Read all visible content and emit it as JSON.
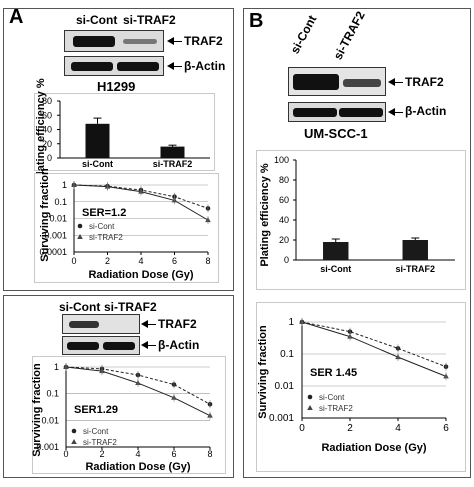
{
  "panel_a": {
    "letter": "A",
    "blot_top": {
      "lane_labels": [
        "si-Cont",
        "si-TRAF2"
      ],
      "protein_labels": [
        "TRAF2",
        "β-Actin"
      ],
      "cell_line": "H1299"
    },
    "blot_bottom": {
      "lane_labels": [
        "si-Cont",
        "si-TRAF2"
      ],
      "protein_labels": [
        "TRAF2",
        "β-Actin"
      ]
    }
  },
  "panel_b": {
    "letter": "B",
    "blot": {
      "lane_labels": [
        "si-Cont",
        "si-TRAF2"
      ],
      "protein_labels": [
        "TRAF2",
        "β-Actin"
      ],
      "cell_line": "UM-SCC-1"
    }
  },
  "chart_data": [
    {
      "id": "a_plating",
      "type": "bar",
      "categories": [
        "si-Cont",
        "si-TRAF2"
      ],
      "values": [
        48,
        16
      ],
      "errors": [
        8,
        2
      ],
      "ylabel": "Plating efficiency %",
      "ylim": [
        0,
        80
      ],
      "yticks": [
        0,
        20,
        40,
        60,
        80
      ],
      "bar_color": "#111111"
    },
    {
      "id": "a_survival_top",
      "type": "line",
      "x": [
        0,
        2,
        4,
        6,
        8
      ],
      "series": [
        {
          "name": "si-Cont",
          "values": [
            1,
            0.85,
            0.5,
            0.2,
            0.04
          ]
        },
        {
          "name": "si-TRAF2",
          "values": [
            1,
            0.8,
            0.4,
            0.12,
            0.008
          ]
        }
      ],
      "yscale": "log",
      "ylim": [
        0.0001,
        1
      ],
      "yticks": [
        1,
        0.1,
        0.01,
        0.001,
        0.0001
      ],
      "ytick_labels": [
        "1",
        "0.1",
        "0.01",
        "0.001",
        "0.0001"
      ],
      "xticks": [
        0,
        2,
        4,
        6,
        8
      ],
      "xlabel": "Radiation Dose (Gy)",
      "ylabel": "Surviving fraction",
      "annotation": "SER=1.2",
      "legend": "bottom-left"
    },
    {
      "id": "a_survival_bottom",
      "type": "line",
      "x": [
        0,
        2,
        4,
        6,
        8
      ],
      "series": [
        {
          "name": "si-Cont",
          "values": [
            1,
            0.85,
            0.5,
            0.22,
            0.04
          ]
        },
        {
          "name": "si-TRAF2",
          "values": [
            1,
            0.7,
            0.25,
            0.07,
            0.015
          ]
        }
      ],
      "yscale": "log",
      "ylim": [
        0.001,
        1
      ],
      "yticks": [
        1,
        0.1,
        0.01,
        0.001
      ],
      "ytick_labels": [
        "1",
        "0.1",
        "0.01",
        "0.001"
      ],
      "xticks": [
        0,
        2,
        4,
        6,
        8
      ],
      "xlabel": "Radiation Dose (Gy)",
      "ylabel": "Surviving fraction",
      "annotation": "SER1.29",
      "legend": "bottom-left"
    },
    {
      "id": "b_plating",
      "type": "bar",
      "categories": [
        "si-Cont",
        "si-TRAF2"
      ],
      "values": [
        18,
        20
      ],
      "errors": [
        3,
        2
      ],
      "ylabel": "Plating efficiency %",
      "ylim": [
        0,
        100
      ],
      "yticks": [
        0,
        20,
        40,
        60,
        80,
        100
      ],
      "bar_color": "#1a1a1a"
    },
    {
      "id": "b_survival",
      "type": "line",
      "x": [
        0,
        2,
        4,
        6
      ],
      "series": [
        {
          "name": "si-Cont",
          "values": [
            1,
            0.5,
            0.15,
            0.04
          ]
        },
        {
          "name": "si-TRAF2",
          "values": [
            1,
            0.35,
            0.08,
            0.02
          ]
        }
      ],
      "yscale": "log",
      "ylim": [
        0.001,
        1
      ],
      "yticks": [
        1,
        0.1,
        0.01,
        0.001
      ],
      "ytick_labels": [
        "1",
        "0.1",
        "0.01",
        "0.001"
      ],
      "xticks": [
        0,
        2,
        4,
        6
      ],
      "xlabel": "Radiation Dose (Gy)",
      "ylabel": "Surviving fraction",
      "annotation": "SER 1.45",
      "legend": "bottom-left"
    }
  ]
}
